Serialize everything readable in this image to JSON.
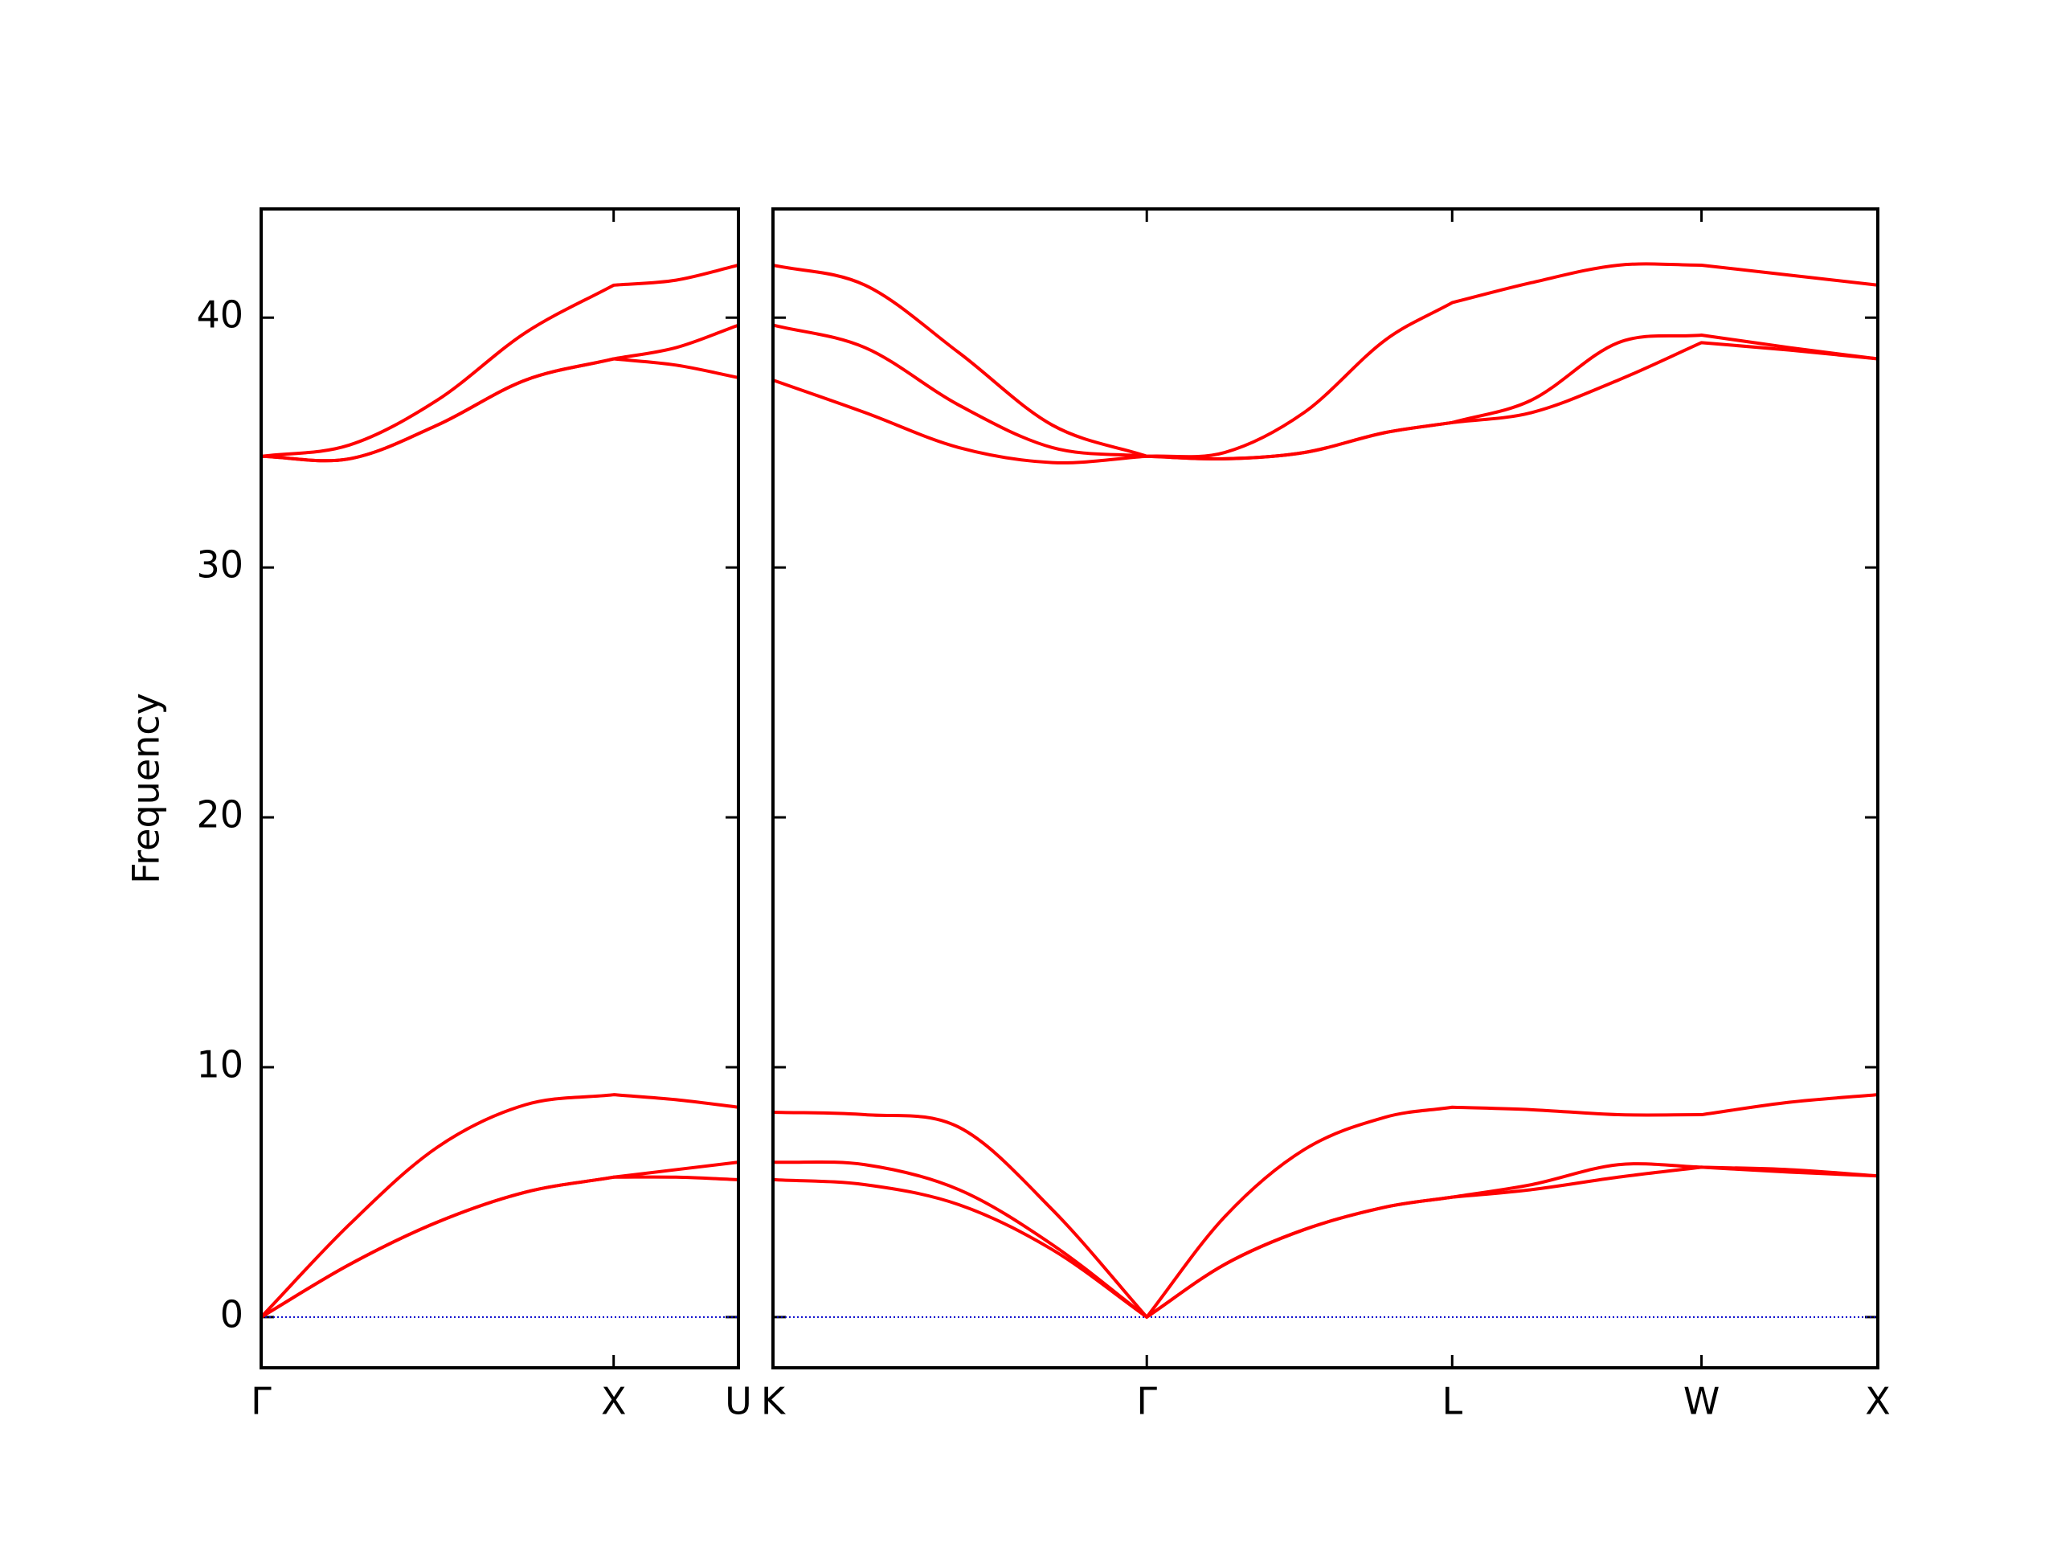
{
  "chart_data": [
    {
      "type": "line",
      "ylabel": "Frequency",
      "x": [
        0,
        0.25,
        0.5,
        0.75,
        1,
        1.177,
        1.354
      ],
      "xlim": [
        0,
        1.354
      ],
      "xticks": [
        {
          "value": 0,
          "label": "Γ"
        },
        {
          "value": 1,
          "label": "X"
        },
        {
          "value": 1.354,
          "label": "U"
        }
      ],
      "ylim": [
        -2.03,
        44.35
      ],
      "yticks": [
        0,
        10,
        20,
        30,
        40
      ],
      "ytick_labels": true,
      "hline": {
        "y": 0,
        "color": "#0000cc",
        "style": "dotted"
      },
      "series": [
        {
          "color": "#ff0000",
          "values": [
            0,
            3.7,
            6.8,
            8.5,
            8.9,
            8.7,
            8.4
          ]
        },
        {
          "color": "#ff0000",
          "values": [
            0,
            2.1,
            3.8,
            5.0,
            5.6,
            5.9,
            6.2
          ]
        },
        {
          "color": "#ff0000",
          "values": [
            0,
            2.1,
            3.8,
            5.0,
            5.6,
            5.6,
            5.5
          ]
        },
        {
          "color": "#ff0000",
          "values": [
            34.45,
            34.9,
            36.7,
            39.4,
            41.3,
            41.5,
            42.1
          ]
        },
        {
          "color": "#ff0000",
          "values": [
            34.45,
            34.35,
            35.7,
            37.5,
            38.35,
            38.8,
            39.7
          ]
        },
        {
          "color": "#ff0000",
          "values": [
            34.45,
            34.35,
            35.7,
            37.5,
            38.35,
            38.1,
            37.6
          ]
        }
      ]
    },
    {
      "type": "line",
      "x": [
        1.354,
        1.615,
        1.881,
        2.146,
        2.414,
        2.634,
        2.86,
        3.09,
        3.28,
        3.505,
        3.751,
        3.987,
        4.237,
        4.487
      ],
      "xlim": [
        1.354,
        4.487
      ],
      "xticks": [
        {
          "value": 1.354,
          "label": "K"
        },
        {
          "value": 2.414,
          "label": "Γ"
        },
        {
          "value": 3.28,
          "label": "L"
        },
        {
          "value": 3.987,
          "label": "W"
        },
        {
          "value": 4.487,
          "label": "X"
        }
      ],
      "ylim": [
        -2.03,
        44.35
      ],
      "yticks": [
        0,
        10,
        20,
        30,
        40
      ],
      "ytick_labels": false,
      "hline": {
        "y": 0,
        "color": "#0000cc",
        "style": "dotted"
      },
      "series": [
        {
          "color": "#ff0000",
          "values": [
            8.2,
            8.1,
            7.6,
            4.3,
            0,
            4.0,
            6.7,
            8.0,
            8.4,
            8.3,
            8.1,
            8.1,
            8.6,
            8.9
          ]
        },
        {
          "color": "#ff0000",
          "values": [
            6.2,
            6.1,
            5.1,
            2.9,
            0,
            2.1,
            3.5,
            4.4,
            4.8,
            5.3,
            6.1,
            6.0,
            5.9,
            5.65
          ]
        },
        {
          "color": "#ff0000",
          "values": [
            5.5,
            5.3,
            4.5,
            2.7,
            0,
            2.1,
            3.5,
            4.4,
            4.8,
            5.1,
            5.6,
            6.0,
            5.8,
            5.65
          ]
        },
        {
          "color": "#ff0000",
          "values": [
            42.1,
            41.3,
            38.6,
            35.7,
            34.45,
            34.6,
            36.2,
            39.1,
            40.6,
            41.4,
            42.1,
            42.1,
            41.7,
            41.3
          ]
        },
        {
          "color": "#ff0000",
          "values": [
            39.7,
            38.8,
            36.5,
            34.8,
            34.45,
            34.35,
            34.6,
            35.4,
            35.8,
            36.7,
            39.0,
            39.3,
            38.8,
            38.35
          ]
        },
        {
          "color": "#ff0000",
          "values": [
            37.5,
            36.2,
            34.8,
            34.2,
            34.45,
            34.35,
            34.6,
            35.4,
            35.8,
            36.2,
            37.5,
            39.0,
            38.7,
            38.35
          ]
        }
      ]
    }
  ]
}
